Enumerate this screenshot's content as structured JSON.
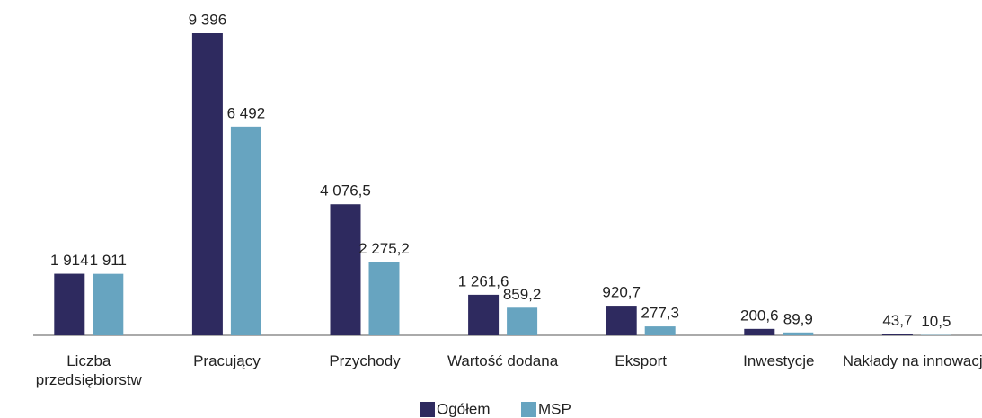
{
  "chart_data": {
    "type": "bar",
    "categories": [
      "Liczba przedsiębiorstw",
      "Pracujący",
      "Przychody",
      "Wartość dodana",
      "Eksport",
      "Inwestycje",
      "Nakłady na innowacje"
    ],
    "series": [
      {
        "name": "Ogółem",
        "color": "#2e2a5f",
        "values": [
          1914,
          9396,
          4076.5,
          1261.6,
          920.7,
          200.6,
          43.7
        ],
        "value_labels": [
          "1 914",
          "9 396",
          "4 076,5",
          "1 261,6",
          "920,7",
          "200,6",
          "43,7"
        ]
      },
      {
        "name": "MSP",
        "color": "#67a4c0",
        "values": [
          1911,
          6492,
          2275.2,
          859.2,
          277.3,
          89.9,
          10.5
        ],
        "value_labels": [
          "1 911",
          "6 492",
          "2 275,2",
          "859,2",
          "277,3",
          "89,9",
          "10,5"
        ]
      }
    ],
    "legend": "bottom"
  }
}
